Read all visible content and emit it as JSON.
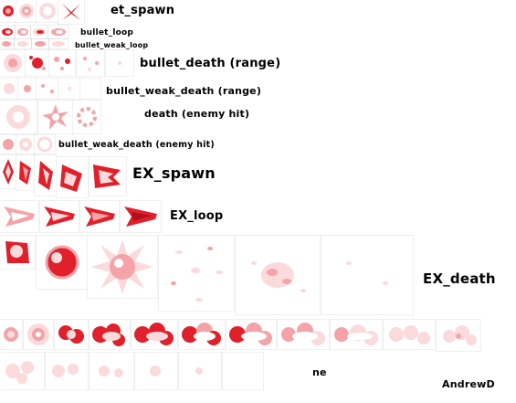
{
  "labels": {
    "bullet_spawn": "et_spawn",
    "bullet_loop": "bullet_loop",
    "bullet_weak_loop": "bullet_weak_loop",
    "bullet_death_range": "bullet_death (range)",
    "bullet_weak_death_range": "bullet_weak_death (range)",
    "bullet_death_enemy_hit": "death (enemy hit)",
    "bullet_weak_death_enemy_hit": "bullet_weak_death (enemy hit)",
    "ex_spawn": "EX_spawn",
    "ex_loop": "EX_loop",
    "ex_death": "EX_death",
    "partial_label": "ne",
    "author": "AndrewD"
  },
  "colors": {
    "red": "#e0202a",
    "dark_red": "#b3101a",
    "pink": "#f4a3a8",
    "light_pink": "#fbdadc",
    "label": "#000000"
  },
  "icons": {
    "spawn": "bullet-spawn-sprite",
    "loop": "bullet-loop-sprite",
    "death": "burst-sprite",
    "ex_spawn": "crystal-shard-sprite",
    "ex_loop": "crystal-arrow-sprite",
    "ex_death": "sun-burst-sprite",
    "cloud": "smoke-cloud-sprite"
  }
}
